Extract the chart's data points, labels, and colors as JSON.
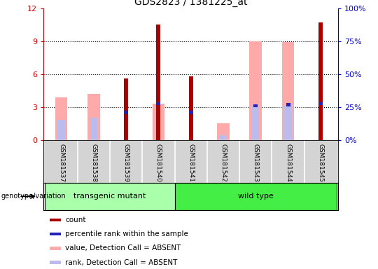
{
  "title": "GDS2823 / 1381225_at",
  "samples": [
    "GSM181537",
    "GSM181538",
    "GSM181539",
    "GSM181540",
    "GSM181541",
    "GSM181542",
    "GSM181543",
    "GSM181544",
    "GSM181545"
  ],
  "count_values": [
    0,
    0,
    5.6,
    10.5,
    5.8,
    0,
    0,
    0,
    10.7
  ],
  "percentile_values": [
    0,
    0,
    2.5,
    3.3,
    2.5,
    0,
    3.1,
    3.2,
    3.3
  ],
  "absent_value_values": [
    3.9,
    4.2,
    0,
    3.3,
    0,
    1.5,
    9.0,
    8.9,
    0
  ],
  "absent_rank_values": [
    1.8,
    2.0,
    0,
    0,
    0,
    0.4,
    3.1,
    3.2,
    0
  ],
  "groups": [
    {
      "label": "transgenic mutant",
      "start": 0,
      "end": 4,
      "color": "#aaffaa"
    },
    {
      "label": "wild type",
      "start": 4,
      "end": 9,
      "color": "#44ee44"
    }
  ],
  "ylim_left": [
    0,
    12
  ],
  "ylim_right": [
    0,
    100
  ],
  "yticks_left": [
    0,
    3,
    6,
    9,
    12
  ],
  "yticks_right": [
    0,
    25,
    50,
    75,
    100
  ],
  "count_color": "#aa0000",
  "percentile_color": "#2222bb",
  "absent_value_color": "#ffaaaa",
  "absent_rank_color": "#bbbbee",
  "left_axis_color": "#cc0000",
  "right_axis_color": "#0000cc",
  "genotype_label": "genotype/variation",
  "legend_items": [
    {
      "label": "count",
      "color": "#aa0000"
    },
    {
      "label": "percentile rank within the sample",
      "color": "#2222bb"
    },
    {
      "label": "value, Detection Call = ABSENT",
      "color": "#ffaaaa"
    },
    {
      "label": "rank, Detection Call = ABSENT",
      "color": "#bbbbee"
    }
  ]
}
